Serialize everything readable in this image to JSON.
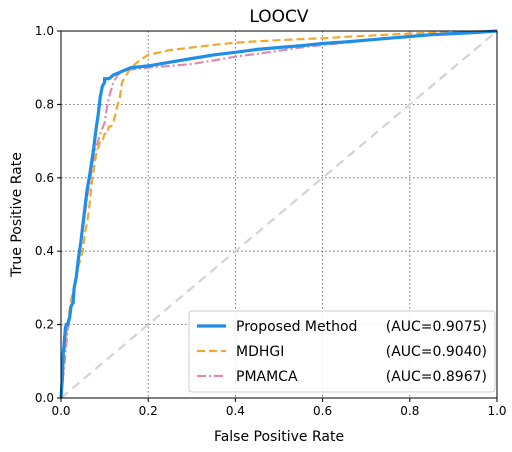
{
  "chart_data": {
    "type": "line",
    "title": "LOOCV",
    "xlabel": "False Positive Rate",
    "ylabel": "True Positive Rate",
    "xlim": [
      0,
      1
    ],
    "ylim": [
      0,
      1
    ],
    "xticks": [
      0.0,
      0.2,
      0.4,
      0.6,
      0.8,
      1.0
    ],
    "yticks": [
      0.0,
      0.2,
      0.4,
      0.6,
      0.8,
      1.0
    ],
    "xtick_labels": [
      "0.0",
      "0.2",
      "0.4",
      "0.6",
      "0.8",
      "1.0"
    ],
    "ytick_labels": [
      "0.0",
      "0.2",
      "0.4",
      "0.6",
      "0.8",
      "1.0"
    ],
    "grid": true,
    "grid_style": "dotted",
    "legend_position": "lower-right",
    "diagonal": {
      "x": [
        0,
        1
      ],
      "y": [
        0,
        1
      ],
      "color": "#d3d3d3",
      "style": "dashed"
    },
    "series": [
      {
        "name": "Proposed Method",
        "auc_label": "(AUC=0.9075)",
        "color": "#1f8ee8",
        "style": "solid",
        "x": [
          0.0,
          0.003,
          0.005,
          0.008,
          0.01,
          0.012,
          0.015,
          0.02,
          0.023,
          0.028,
          0.03,
          0.035,
          0.04,
          0.045,
          0.05,
          0.055,
          0.06,
          0.065,
          0.07,
          0.075,
          0.08,
          0.085,
          0.09,
          0.095,
          0.1,
          0.1,
          0.11,
          0.12,
          0.13,
          0.14,
          0.16,
          0.2,
          0.25,
          0.3,
          0.35,
          0.4,
          0.45,
          0.5,
          0.55,
          0.6,
          0.65,
          0.7,
          0.75,
          0.8,
          0.85,
          0.9,
          0.95,
          1.0
        ],
        "y": [
          0.0,
          0.05,
          0.12,
          0.16,
          0.19,
          0.2,
          0.2,
          0.22,
          0.25,
          0.26,
          0.3,
          0.33,
          0.38,
          0.42,
          0.47,
          0.52,
          0.57,
          0.6,
          0.64,
          0.68,
          0.73,
          0.77,
          0.82,
          0.85,
          0.86,
          0.87,
          0.87,
          0.88,
          0.885,
          0.89,
          0.9,
          0.905,
          0.915,
          0.925,
          0.935,
          0.942,
          0.95,
          0.955,
          0.96,
          0.966,
          0.97,
          0.975,
          0.98,
          0.985,
          0.99,
          0.993,
          0.996,
          1.0
        ]
      },
      {
        "name": "MDHGI",
        "auc_label": "(AUC=0.9040)",
        "color": "#f0a830",
        "style": "dashed",
        "x": [
          0.0,
          0.005,
          0.01,
          0.015,
          0.02,
          0.025,
          0.03,
          0.035,
          0.04,
          0.05,
          0.055,
          0.06,
          0.065,
          0.07,
          0.075,
          0.08,
          0.085,
          0.09,
          0.095,
          0.1,
          0.105,
          0.11,
          0.115,
          0.12,
          0.13,
          0.135,
          0.14,
          0.15,
          0.16,
          0.18,
          0.2,
          0.25,
          0.3,
          0.35,
          0.4,
          0.45,
          0.5,
          0.55,
          0.6,
          0.65,
          0.7,
          0.75,
          0.8,
          0.85,
          0.9,
          0.95,
          1.0
        ],
        "y": [
          0.0,
          0.08,
          0.15,
          0.2,
          0.24,
          0.28,
          0.3,
          0.33,
          0.36,
          0.4,
          0.45,
          0.48,
          0.52,
          0.58,
          0.62,
          0.66,
          0.68,
          0.7,
          0.7,
          0.72,
          0.72,
          0.74,
          0.74,
          0.75,
          0.8,
          0.82,
          0.86,
          0.88,
          0.9,
          0.92,
          0.935,
          0.948,
          0.955,
          0.962,
          0.968,
          0.972,
          0.975,
          0.978,
          0.98,
          0.984,
          0.987,
          0.99,
          0.993,
          0.995,
          0.997,
          0.999,
          1.0
        ]
      },
      {
        "name": "PMAMCA",
        "auc_label": "(AUC=0.8967)",
        "color": "#e08aae",
        "style": "dashdot",
        "x": [
          0.0,
          0.005,
          0.01,
          0.015,
          0.02,
          0.025,
          0.03,
          0.035,
          0.04,
          0.045,
          0.05,
          0.055,
          0.06,
          0.065,
          0.07,
          0.08,
          0.09,
          0.1,
          0.105,
          0.11,
          0.12,
          0.13,
          0.14,
          0.16,
          0.2,
          0.25,
          0.3,
          0.35,
          0.4,
          0.45,
          0.5,
          0.55,
          0.6,
          0.65,
          0.7,
          0.75,
          0.8,
          0.85,
          0.9,
          0.95,
          1.0
        ],
        "y": [
          0.0,
          0.06,
          0.12,
          0.18,
          0.22,
          0.26,
          0.3,
          0.33,
          0.37,
          0.42,
          0.46,
          0.5,
          0.55,
          0.58,
          0.62,
          0.68,
          0.72,
          0.75,
          0.79,
          0.82,
          0.86,
          0.88,
          0.89,
          0.895,
          0.9,
          0.905,
          0.91,
          0.92,
          0.93,
          0.938,
          0.946,
          0.955,
          0.962,
          0.968,
          0.974,
          0.98,
          0.986,
          0.99,
          0.994,
          0.997,
          1.0
        ]
      }
    ]
  }
}
